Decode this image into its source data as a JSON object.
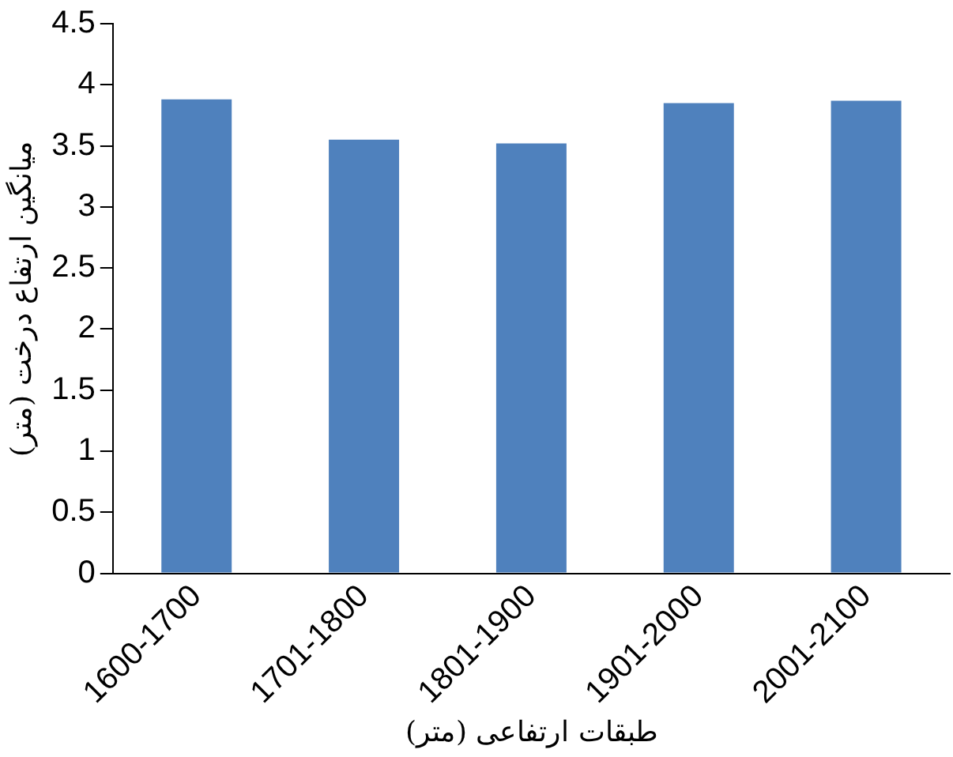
{
  "chart_data": {
    "type": "bar",
    "xlabel": "طبقات ارتفاعی (متر)",
    "ylabel": "میانگین ارتفاع درخت (متر)",
    "categories": [
      "1600-1700",
      "1701-1800",
      "1801-1900",
      "1901-2000",
      "2001-2100"
    ],
    "values": [
      3.88,
      3.55,
      3.52,
      3.85,
      3.87
    ],
    "color": "#4f81bd",
    "ylim": [
      0,
      4.5
    ],
    "yticks": [
      0,
      0.5,
      1,
      1.5,
      2,
      2.5,
      3,
      3.5,
      4,
      4.5
    ],
    "grid": false,
    "legend": false
  }
}
